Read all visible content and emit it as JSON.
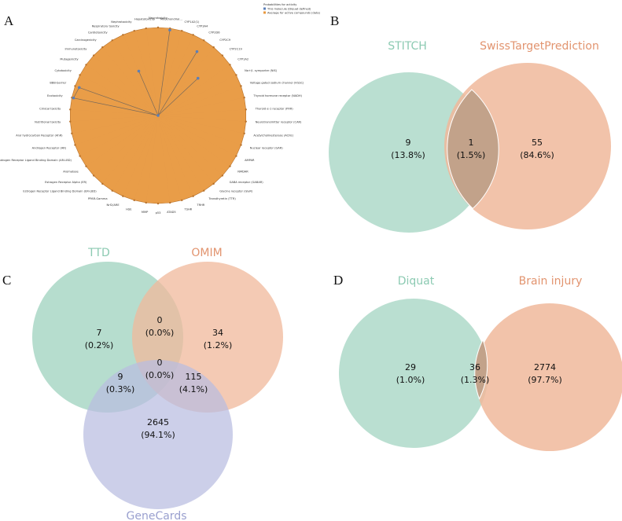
{
  "colors": {
    "green": "#aed9c9",
    "orange": "#f0b89b",
    "blue": "#b8bde0",
    "green_text": "#8ccab2",
    "orange_text": "#e2946f",
    "blue_text": "#9aa0cf",
    "radar_fill": "#e8983e",
    "radar_line": "#b8722c",
    "radar_point": "#5b7fb8"
  },
  "panels": {
    "A": "A",
    "B": "B",
    "C": "C",
    "D": "D"
  },
  "chart_data": [
    {
      "id": "A",
      "type": "radar",
      "title": "",
      "legend": {
        "title": "Probabilities for activity",
        "entries": [
          "This molecule (Diquat defined)",
          "Average for active compounds (data)"
        ],
        "position": "top-right"
      },
      "axes": [
        "Neurotoxicity",
        "Mitochondrial...",
        "CYP1A2(1)",
        "CYP3A4",
        "CYP2D6",
        "CYP2C9",
        "CYP2C19",
        "CYP1A2",
        "Na+/I- symporter (NIS)",
        "Voltage gated sodium channel (VGSC)",
        "Thyroid hormone receptor (NADH)",
        "Thyroid α-1 receptor (PXR)",
        "Neurotransmitter receptor (CAR)",
        "Acetylcholinesterase (AChE)",
        "Nuclear receptor (GAR)",
        "AMPAR",
        "NMDAR",
        "GABA receptor (GABAR)",
        "Glycine receptor (GlyR)",
        "Transthyretin (TTR)",
        "TRHR",
        "TSHR",
        "ATAD5",
        "p53",
        "MMP",
        "HSE",
        "Nrf2/ARE",
        "PPAR-Gamma",
        "Estrogen Receptor Ligand Binding Domain (ER-LBD)",
        "Estrogen Receptor Alpha (ER)",
        "Aromatase",
        "Androgen Receptor Ligand Binding Domain (AR-LBD)",
        "Androgen Receptor (AR)",
        "Aryl hydrocarbon Receptor (AhR)",
        "Nutritional toxicity",
        "Clinical toxicity",
        "Ecotoxicity",
        "BBB-barrier",
        "Cytotoxicity",
        "Mutagenicity",
        "Immunotoxicity",
        "Carcinogenicity",
        "Cardiotoxicity",
        "Respiratory toxicity",
        "Nephrotoxicity",
        "Hepatotoxicity"
      ],
      "molecule_values": [
        0,
        0.98,
        0,
        0,
        0.85,
        0,
        0.62,
        0,
        0,
        0,
        0,
        0,
        0,
        0,
        0,
        0,
        0,
        0,
        0,
        0,
        0,
        0,
        0,
        0,
        0,
        0,
        0,
        0,
        0,
        0,
        0,
        0,
        0,
        0,
        0,
        0,
        0.98,
        0.95,
        0,
        0,
        0,
        0,
        0,
        0.55,
        0,
        0
      ],
      "average_values": [
        1,
        1,
        1,
        1,
        1,
        1,
        1,
        1,
        1,
        1,
        1,
        1,
        1,
        1,
        1,
        1,
        1,
        1,
        1,
        1,
        1,
        1,
        1,
        1,
        1,
        1,
        1,
        1,
        1,
        1,
        1,
        1,
        1,
        1,
        1,
        1,
        1,
        1,
        1,
        1,
        1,
        1,
        1,
        1,
        1,
        1
      ],
      "range": [
        0,
        1
      ]
    },
    {
      "id": "B",
      "type": "venn2",
      "sets": [
        "STITCH",
        "SwissTargetPrediction"
      ],
      "regions": [
        {
          "name": "STITCH only",
          "count": "9",
          "percent": "(13.8%)"
        },
        {
          "name": "STITCH ∩ SwissTargetPrediction",
          "count": "1",
          "percent": "(1.5%)"
        },
        {
          "name": "SwissTargetPrediction only",
          "count": "55",
          "percent": "(84.6%)"
        }
      ]
    },
    {
      "id": "C",
      "type": "venn3",
      "sets": [
        "TTD",
        "OMIM",
        "GeneCards"
      ],
      "regions": [
        {
          "name": "TTD only",
          "count": "7",
          "percent": "(0.2%)"
        },
        {
          "name": "TTD ∩ OMIM",
          "count": "0",
          "percent": "(0.0%)"
        },
        {
          "name": "OMIM only",
          "count": "34",
          "percent": "(1.2%)"
        },
        {
          "name": "TTD ∩ OMIM ∩ GeneCards",
          "count": "0",
          "percent": "(0.0%)"
        },
        {
          "name": "TTD ∩ GeneCards",
          "count": "9",
          "percent": "(0.3%)"
        },
        {
          "name": "OMIM ∩ GeneCards",
          "count": "115",
          "percent": "(4.1%)"
        },
        {
          "name": "GeneCards only",
          "count": "2645",
          "percent": "(94.1%)"
        }
      ]
    },
    {
      "id": "D",
      "type": "venn2",
      "sets": [
        "Diquat",
        "Brain injury"
      ],
      "regions": [
        {
          "name": "Diquat only",
          "count": "29",
          "percent": "(1.0%)"
        },
        {
          "name": "Diquat ∩ Brain injury",
          "count": "36",
          "percent": "(1.3%)"
        },
        {
          "name": "Brain injury only",
          "count": "2774",
          "percent": "(97.7%)"
        }
      ]
    }
  ]
}
